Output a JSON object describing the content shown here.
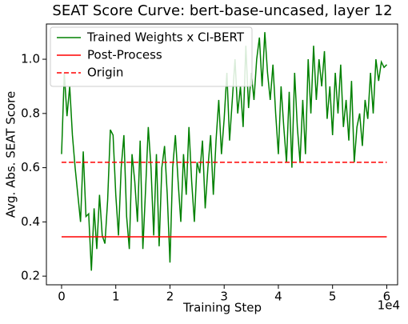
{
  "chart_data": {
    "type": "line",
    "title": "SEAT Score Curve: bert-base-uncased, layer 12",
    "x_label": "Training Step",
    "y_label": "Avg. Abs. SEAT Score",
    "x_offset_label": "1e4",
    "xlim": [
      -2800,
      62000
    ],
    "ylim": [
      0.168,
      1.13
    ],
    "xticks": [
      {
        "value": 0,
        "label": "0"
      },
      {
        "value": 10000,
        "label": "1"
      },
      {
        "value": 20000,
        "label": "2"
      },
      {
        "value": 30000,
        "label": "3"
      },
      {
        "value": 40000,
        "label": "4"
      },
      {
        "value": 50000,
        "label": "5"
      },
      {
        "value": 60000,
        "label": "6"
      }
    ],
    "yticks": [
      0.2,
      0.4,
      0.6,
      0.8,
      {
        "value": 1.0,
        "label": "1.0"
      }
    ],
    "legend": "upper left",
    "series": [
      {
        "name": "Trained Weights x CI-BERT",
        "color": "#008000",
        "style": "solid",
        "x": [
          0,
          500,
          1000,
          1500,
          2000,
          2500,
          3000,
          3500,
          4000,
          4500,
          5000,
          5500,
          6000,
          6500,
          7000,
          7500,
          8000,
          8500,
          9000,
          9500,
          10000,
          10500,
          11000,
          11500,
          12000,
          12500,
          13000,
          13500,
          14000,
          14500,
          15000,
          15500,
          16000,
          16500,
          17000,
          17500,
          18000,
          18500,
          19000,
          19500,
          20000,
          20500,
          21000,
          21500,
          22000,
          22500,
          23000,
          23500,
          24000,
          24500,
          25000,
          25500,
          26000,
          26500,
          27000,
          27500,
          28000,
          28500,
          29000,
          29500,
          30000,
          30500,
          31000,
          31500,
          32000,
          32500,
          33000,
          33500,
          34000,
          34500,
          35000,
          35500,
          36000,
          36500,
          37000,
          37500,
          38000,
          38500,
          39000,
          39500,
          40000,
          40500,
          41000,
          41500,
          42000,
          42500,
          43000,
          43500,
          44000,
          44500,
          45000,
          45500,
          46000,
          46500,
          47000,
          47500,
          48000,
          48500,
          49000,
          49500,
          50000,
          50500,
          51000,
          51500,
          52000,
          52500,
          53000,
          53500,
          54000,
          54500,
          55000,
          55500,
          56000,
          56500,
          57000,
          57500,
          58000,
          58500,
          59000,
          59500,
          60000
        ],
        "values": [
          0.65,
          0.95,
          0.79,
          0.9,
          0.72,
          0.6,
          0.5,
          0.4,
          0.66,
          0.42,
          0.43,
          0.22,
          0.45,
          0.3,
          0.5,
          0.35,
          0.32,
          0.48,
          0.74,
          0.72,
          0.5,
          0.35,
          0.6,
          0.72,
          0.42,
          0.3,
          0.65,
          0.55,
          0.4,
          0.7,
          0.3,
          0.52,
          0.75,
          0.6,
          0.35,
          0.65,
          0.31,
          0.6,
          0.68,
          0.5,
          0.25,
          0.6,
          0.72,
          0.55,
          0.4,
          0.65,
          0.5,
          0.75,
          0.55,
          0.4,
          0.62,
          0.58,
          0.7,
          0.45,
          0.6,
          0.72,
          0.5,
          0.7,
          0.85,
          0.65,
          0.78,
          0.95,
          0.7,
          0.85,
          1.0,
          0.8,
          0.9,
          0.75,
          1.05,
          0.82,
          0.95,
          0.85,
          1.0,
          1.08,
          0.9,
          1.1,
          0.95,
          0.85,
          0.98,
          0.8,
          0.65,
          0.9,
          0.75,
          0.62,
          0.88,
          0.6,
          0.95,
          0.75,
          0.62,
          0.85,
          0.65,
          1.0,
          0.8,
          1.05,
          0.85,
          1.0,
          0.9,
          1.03,
          0.78,
          0.9,
          0.72,
          0.95,
          0.8,
          0.98,
          0.75,
          0.85,
          0.7,
          0.92,
          0.62,
          0.75,
          0.8,
          0.68,
          0.85,
          0.78,
          0.95,
          0.8,
          1.0,
          0.92,
          0.99,
          0.97,
          0.98
        ]
      },
      {
        "name": "Post-Process",
        "color": "#ff0000",
        "style": "solid",
        "x": [
          0,
          60000
        ],
        "values": [
          0.345,
          0.345
        ]
      },
      {
        "name": "Origin",
        "color": "#ff0000",
        "style": "dashed",
        "x": [
          0,
          60000
        ],
        "values": [
          0.62,
          0.62
        ]
      }
    ]
  }
}
